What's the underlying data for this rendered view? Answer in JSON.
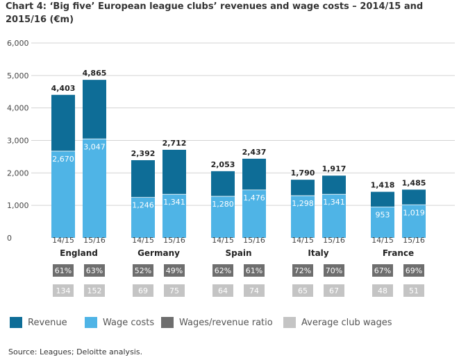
{
  "title": "Chart 4: ‘Big five’ European league clubs’ revenues and wage costs – 2014/15 and 2015/16 (€m)",
  "source": "Source: Leagues; Deloitte analysis.",
  "colors": {
    "revenue": "#0e6d97",
    "wages": "#4fb4e6",
    "ratio_box": "#6e6e6e",
    "avg_box": "#c4c4c4",
    "grid": "#d3d3d3"
  },
  "legend": [
    {
      "label": "Revenue",
      "color": "#0e6d97"
    },
    {
      "label": "Wage costs",
      "color": "#4fb4e6"
    },
    {
      "label": "Wages/revenue ratio",
      "color": "#6e6e6e"
    },
    {
      "label": "Average club wages",
      "color": "#c4c4c4"
    }
  ],
  "chart_data": {
    "type": "bar",
    "ylim": [
      0,
      6000
    ],
    "yticks": [
      "0",
      "1,000",
      "2,000",
      "3,000",
      "4,000",
      "5,000",
      "6,000"
    ],
    "ytick_values": [
      0,
      1000,
      2000,
      3000,
      4000,
      5000,
      6000
    ],
    "grid": true,
    "legend_position": "bottom",
    "groups": [
      {
        "league": "England",
        "bars": [
          {
            "season": "14/15",
            "revenue": 4403,
            "revenue_label": "4,403",
            "wages": 2670,
            "wages_label": "2,670",
            "ratio": "61%",
            "avg_wages": "134"
          },
          {
            "season": "15/16",
            "revenue": 4865,
            "revenue_label": "4,865",
            "wages": 3047,
            "wages_label": "3,047",
            "ratio": "63%",
            "avg_wages": "152"
          }
        ]
      },
      {
        "league": "Germany",
        "bars": [
          {
            "season": "14/15",
            "revenue": 2392,
            "revenue_label": "2,392",
            "wages": 1246,
            "wages_label": "1,246",
            "ratio": "52%",
            "avg_wages": "69"
          },
          {
            "season": "15/16",
            "revenue": 2712,
            "revenue_label": "2,712",
            "wages": 1341,
            "wages_label": "1,341",
            "ratio": "49%",
            "avg_wages": "75"
          }
        ]
      },
      {
        "league": "Spain",
        "bars": [
          {
            "season": "14/15",
            "revenue": 2053,
            "revenue_label": "2,053",
            "wages": 1280,
            "wages_label": "1,280",
            "ratio": "62%",
            "avg_wages": "64"
          },
          {
            "season": "15/16",
            "revenue": 2437,
            "revenue_label": "2,437",
            "wages": 1476,
            "wages_label": "1,476",
            "ratio": "61%",
            "avg_wages": "74"
          }
        ]
      },
      {
        "league": "Italy",
        "bars": [
          {
            "season": "14/15",
            "revenue": 1790,
            "revenue_label": "1,790",
            "wages": 1298,
            "wages_label": "1,298",
            "ratio": "72%",
            "avg_wages": "65"
          },
          {
            "season": "15/16",
            "revenue": 1917,
            "revenue_label": "1,917",
            "wages": 1341,
            "wages_label": "1,341",
            "ratio": "70%",
            "avg_wages": "67"
          }
        ]
      },
      {
        "league": "France",
        "bars": [
          {
            "season": "14/15",
            "revenue": 1418,
            "revenue_label": "1,418",
            "wages": 953,
            "wages_label": "953",
            "ratio": "67%",
            "avg_wages": "48"
          },
          {
            "season": "15/16",
            "revenue": 1485,
            "revenue_label": "1,485",
            "wages": 1019,
            "wages_label": "1,019",
            "ratio": "69%",
            "avg_wages": "51"
          }
        ]
      }
    ]
  }
}
